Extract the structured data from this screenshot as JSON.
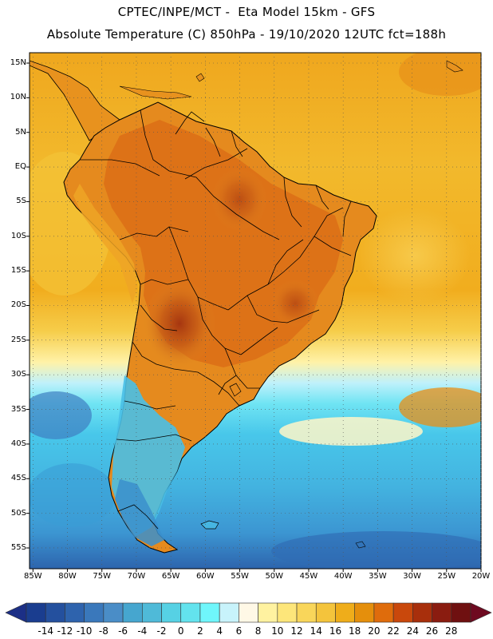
{
  "header": {
    "title_line1": "CPTEC/INPE/MCT -  Eta Model 15km - GFS",
    "title_line2": "Absolute Temperature (C) 850hPa - 19/10/2020 12UTC fct=188h"
  },
  "map": {
    "variable": "Absolute Temperature (C) 850hPa",
    "lat_labels": [
      "15N",
      "10N",
      "5N",
      "EQ",
      "5S",
      "10S",
      "15S",
      "20S",
      "25S",
      "30S",
      "35S",
      "40S",
      "45S",
      "50S",
      "55S"
    ],
    "lon_labels": [
      "85W",
      "80W",
      "75W",
      "70W",
      "65W",
      "60W",
      "55W",
      "50W",
      "45W",
      "40W",
      "35W",
      "30W",
      "25W",
      "20W"
    ],
    "lat_range": [
      -58,
      16.5
    ],
    "lon_range": [
      -85.5,
      -20
    ]
  },
  "colorbar": {
    "labels": [
      "-14",
      "-12",
      "-10",
      "-8",
      "-6",
      "-4",
      "-2",
      "0",
      "2",
      "4",
      "6",
      "8",
      "10",
      "12",
      "14",
      "16",
      "18",
      "20",
      "22",
      "24",
      "26",
      "28"
    ],
    "colors": [
      "#1a3d8f",
      "#24509e",
      "#2e63ad",
      "#3a78bb",
      "#4a8dc7",
      "#46a6cf",
      "#4fbad8",
      "#56d1e4",
      "#63e3ee",
      "#6ff6fb",
      "#c8f3fb",
      "#fff8e6",
      "#fff2a0",
      "#fde67a",
      "#f9d65a",
      "#f4c43c",
      "#efad1a",
      "#e58f0c",
      "#df6c0c",
      "#c9480c",
      "#a82f0c",
      "#8a1c10",
      "#6f1010"
    ],
    "under_color": "#1c2f86",
    "over_color": "#6e0a20"
  },
  "legend_colors": {
    "ocean_warm": "#f3b42a",
    "land_hot": "#e37a1c",
    "land_hottest": "#b34416",
    "cold_ocean": "#4fbfe4",
    "cool_ocean": "#74def2",
    "border": "#000000"
  }
}
